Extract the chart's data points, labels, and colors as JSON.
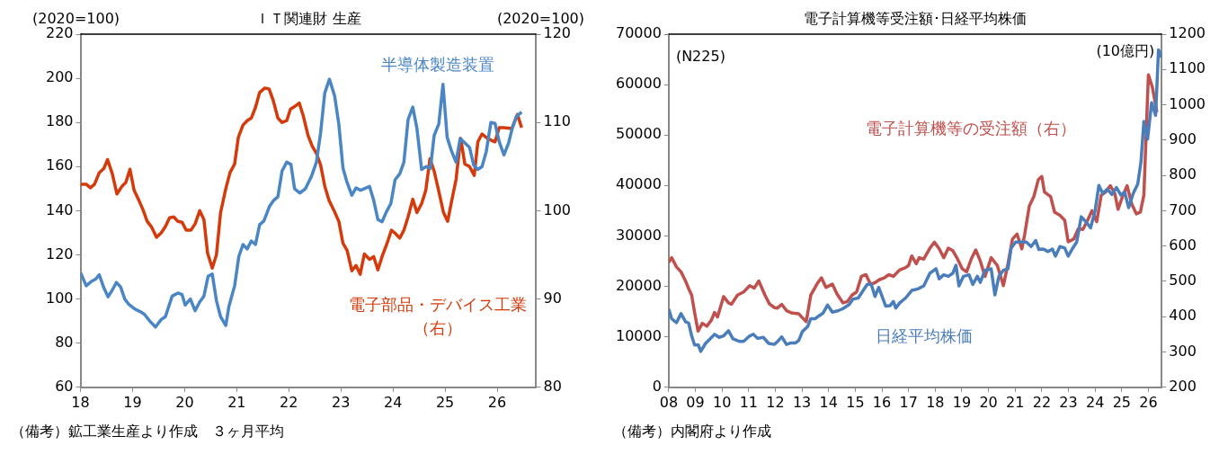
{
  "chart_data": [
    {
      "type": "line",
      "title": "ＩＴ関連財 生産",
      "ylabel": "(2020=100)",
      "y2label": "(2020=100)",
      "xlim": [
        2018,
        2026.75
      ],
      "xticks": [
        {
          "value": 2018,
          "label": "18"
        },
        {
          "value": 2019,
          "label": "19"
        },
        {
          "value": 2020,
          "label": "20"
        },
        {
          "value": 2021,
          "label": "21"
        },
        {
          "value": 2022,
          "label": "22"
        },
        {
          "value": 2023,
          "label": "23"
        },
        {
          "value": 2024,
          "label": "24"
        },
        {
          "value": 2025,
          "label": "25"
        },
        {
          "value": 2026,
          "label": "26"
        }
      ],
      "ylim": [
        60,
        220
      ],
      "yticks": [
        60,
        80,
        100,
        120,
        140,
        160,
        180,
        200,
        220
      ],
      "y2lim": [
        80,
        120
      ],
      "y2ticks": [
        80,
        90,
        100,
        110,
        120
      ],
      "grid": false,
      "annotations": [
        "（備考）鉱工業生産より作成　３ヶ月平均"
      ],
      "series": [
        {
          "name": "半導体製造装置",
          "color": "#4a86c5",
          "x": [
            2018.0,
            2018.11,
            2018.21,
            2018.29,
            2018.36,
            2018.45,
            2018.53,
            2018.61,
            2018.69,
            2018.77,
            2018.85,
            2018.93,
            2019.04,
            2019.17,
            2019.23,
            2019.33,
            2019.44,
            2019.55,
            2019.63,
            2019.76,
            2019.87,
            2019.95,
            2020.01,
            2020.11,
            2020.2,
            2020.29,
            2020.37,
            2020.45,
            2020.53,
            2020.61,
            2020.69,
            2020.79,
            2020.85,
            2020.96,
            2021.04,
            2021.12,
            2021.2,
            2021.28,
            2021.36,
            2021.44,
            2021.52,
            2021.63,
            2021.71,
            2021.79,
            2021.87,
            2021.96,
            2022.04,
            2022.11,
            2022.21,
            2022.32,
            2022.43,
            2022.53,
            2022.61,
            2022.69,
            2022.78,
            2022.88,
            2022.96,
            2023.04,
            2023.12,
            2023.21,
            2023.29,
            2023.38,
            2023.55,
            2023.63,
            2023.71,
            2023.79,
            2023.87,
            2023.96,
            2024.04,
            2024.13,
            2024.21,
            2024.29,
            2024.38,
            2024.46,
            2024.55,
            2024.64,
            2024.72,
            2024.79,
            2024.88,
            2024.96,
            2025.04,
            2025.12,
            2025.21,
            2025.29,
            2025.38,
            2025.47,
            2025.55,
            2025.63,
            2025.71,
            2025.79,
            2025.88,
            2025.96,
            2026.04,
            2026.13,
            2026.22,
            2026.29,
            2026.37,
            2026.47
          ],
          "values": [
            112,
            106,
            108,
            109,
            111,
            105,
            101,
            104,
            107.5,
            105.5,
            100,
            97.5,
            95.5,
            94,
            93,
            90,
            87.3,
            90.7,
            92,
            101.3,
            102.7,
            102,
            97.3,
            100,
            94.7,
            98.7,
            101.3,
            110.3,
            111.3,
            99.3,
            92,
            88,
            96.7,
            106,
            119.3,
            124.7,
            122.7,
            126.3,
            124.7,
            133.7,
            135.3,
            142,
            144.7,
            146.3,
            158,
            162,
            161,
            150,
            148,
            150,
            155.3,
            162,
            175.3,
            193.3,
            199.6,
            192,
            179.3,
            159.3,
            152.7,
            147,
            150.3,
            149.3,
            151,
            144.7,
            136,
            135,
            139.3,
            143.3,
            154,
            156.7,
            162,
            181.3,
            187,
            177.3,
            158.7,
            160,
            159.3,
            174,
            179.3,
            197.3,
            173.3,
            167.3,
            162,
            172.7,
            170.7,
            168.7,
            160.7,
            158.7,
            160,
            166.7,
            180,
            179.6,
            171.3,
            165.3,
            170.7,
            177.3,
            182.7,
            184.7
          ]
        },
        {
          "name": "電子部品・デバイス工業（右）",
          "color": "#d43a0a",
          "axis": "y2",
          "x": [
            2018.0,
            2018.11,
            2018.19,
            2018.27,
            2018.36,
            2018.45,
            2018.52,
            2018.61,
            2018.7,
            2018.8,
            2018.87,
            2018.95,
            2019.03,
            2019.12,
            2019.2,
            2019.28,
            2019.36,
            2019.46,
            2019.55,
            2019.63,
            2019.71,
            2019.79,
            2019.87,
            2019.95,
            2020.03,
            2020.12,
            2020.2,
            2020.29,
            2020.37,
            2020.44,
            2020.53,
            2020.61,
            2020.69,
            2020.79,
            2020.87,
            2020.96,
            2021.03,
            2021.12,
            2021.2,
            2021.28,
            2021.36,
            2021.44,
            2021.54,
            2021.62,
            2021.7,
            2021.79,
            2021.87,
            2021.96,
            2022.03,
            2022.11,
            2022.2,
            2022.28,
            2022.37,
            2022.45,
            2022.53,
            2022.61,
            2022.69,
            2022.77,
            2022.87,
            2022.96,
            2023.04,
            2023.12,
            2023.21,
            2023.29,
            2023.37,
            2023.45,
            2023.55,
            2023.63,
            2023.71,
            2023.79,
            2023.88,
            2023.97,
            2024.05,
            2024.13,
            2024.21,
            2024.29,
            2024.38,
            2024.46,
            2024.55,
            2024.63,
            2024.71,
            2024.79,
            2024.88,
            2024.97,
            2025.05,
            2025.13,
            2025.21,
            2025.3,
            2025.38,
            2025.47,
            2025.56,
            2025.63,
            2025.71,
            2025.79,
            2025.88,
            2025.96,
            2026.04,
            2026.13,
            2026.28,
            2026.39,
            2026.47
          ],
          "values": [
            103,
            103,
            102.6,
            103,
            104.3,
            104.8,
            105.8,
            104.2,
            101.9,
            102.8,
            103.2,
            104.7,
            102.3,
            101.2,
            100.1,
            98.8,
            98.2,
            97,
            97.5,
            98.2,
            99.2,
            99.3,
            98.8,
            98.7,
            97.8,
            97.8,
            98.5,
            100,
            99,
            95.2,
            93.5,
            95,
            99.8,
            102.5,
            104.3,
            105.3,
            108.3,
            109.7,
            110.2,
            110.5,
            111.7,
            113.4,
            113.9,
            113.8,
            112.5,
            110.5,
            110,
            110.2,
            111.5,
            111.8,
            112.2,
            110.7,
            108.5,
            107.3,
            106.5,
            105.2,
            102.8,
            101.2,
            100,
            98.8,
            96.3,
            95.5,
            93.2,
            93.8,
            92.8,
            95.1,
            94.5,
            94.8,
            93.3,
            94.8,
            96.2,
            97.8,
            97.4,
            96.9,
            97.8,
            99.3,
            101.3,
            99.8,
            100.8,
            102.3,
            105.9,
            104.5,
            102.2,
            99.8,
            98.8,
            101.2,
            103.5,
            108.2,
            105.3,
            105,
            104,
            107.8,
            108.7,
            108.3,
            108,
            107.8,
            109.4,
            109.4,
            109.3,
            110.9,
            109.4
          ]
        }
      ]
    },
    {
      "type": "line",
      "title": "電子計算機等受注額･日経平均株価",
      "ylabel": "(N225)",
      "y2label": "(10億円)",
      "xlim": [
        2008,
        2026.5
      ],
      "xticks": [
        {
          "value": 2008,
          "label": "08"
        },
        {
          "value": 2009,
          "label": "09"
        },
        {
          "value": 2010,
          "label": "10"
        },
        {
          "value": 2011,
          "label": "11"
        },
        {
          "value": 2012,
          "label": "12"
        },
        {
          "value": 2013,
          "label": "13"
        },
        {
          "value": 2014,
          "label": "14"
        },
        {
          "value": 2015,
          "label": "15"
        },
        {
          "value": 2016,
          "label": "16"
        },
        {
          "value": 2017,
          "label": "17"
        },
        {
          "value": 2018,
          "label": "18"
        },
        {
          "value": 2019,
          "label": "19"
        },
        {
          "value": 2020,
          "label": "20"
        },
        {
          "value": 2021,
          "label": "21"
        },
        {
          "value": 2022,
          "label": "22"
        },
        {
          "value": 2023,
          "label": "23"
        },
        {
          "value": 2024,
          "label": "24"
        },
        {
          "value": 2025,
          "label": "25"
        },
        {
          "value": 2026,
          "label": "26"
        }
      ],
      "ylim": [
        0,
        70000
      ],
      "yticks": [
        0,
        10000,
        20000,
        30000,
        40000,
        50000,
        60000,
        70000
      ],
      "y2lim": [
        200,
        1200
      ],
      "y2ticks": [
        200,
        300,
        400,
        500,
        600,
        700,
        800,
        900,
        1000,
        1100,
        1200
      ],
      "grid": false,
      "annotations": [
        "（備考）内閣府より作成"
      ],
      "series": [
        {
          "name": "日経平均株価",
          "color": "#4a7ebb",
          "x": [
            2008.0,
            2008.11,
            2008.29,
            2008.46,
            2008.63,
            2008.75,
            2008.86,
            2008.97,
            2009.11,
            2009.2,
            2009.38,
            2009.55,
            2009.72,
            2009.89,
            2010.06,
            2010.24,
            2010.41,
            2010.64,
            2010.81,
            2011.04,
            2011.18,
            2011.33,
            2011.55,
            2011.75,
            2011.96,
            2012.07,
            2012.24,
            2012.42,
            2012.59,
            2012.76,
            2012.88,
            2013.01,
            2013.22,
            2013.33,
            2013.5,
            2013.62,
            2013.79,
            2013.96,
            2014.14,
            2014.37,
            2014.54,
            2014.77,
            2014.92,
            2015.11,
            2015.26,
            2015.45,
            2015.6,
            2015.74,
            2015.88,
            2016.14,
            2016.31,
            2016.43,
            2016.52,
            2016.66,
            2016.89,
            2017.12,
            2017.35,
            2017.57,
            2017.8,
            2018.03,
            2018.15,
            2018.32,
            2018.49,
            2018.66,
            2018.78,
            2018.89,
            2019.06,
            2019.27,
            2019.41,
            2019.58,
            2019.69,
            2019.87,
            2020.1,
            2020.24,
            2020.39,
            2020.56,
            2020.73,
            2020.85,
            2021.02,
            2021.2,
            2021.42,
            2021.6,
            2021.77,
            2021.89,
            2022.06,
            2022.23,
            2022.4,
            2022.51,
            2022.68,
            2022.86,
            2022.99,
            2023.14,
            2023.31,
            2023.48,
            2023.66,
            2023.83,
            2024.0,
            2024.14,
            2024.29,
            2024.46,
            2024.63,
            2024.8,
            2024.97,
            2025.11,
            2025.26,
            2025.43,
            2025.6,
            2025.72,
            2025.83,
            2025.97,
            2026.12,
            2026.27,
            2026.38,
            2026.5
          ],
          "values": [
            15500,
            13600,
            12800,
            14600,
            13000,
            12700,
            10200,
            8400,
            8400,
            7100,
            8700,
            9600,
            10500,
            9900,
            10200,
            11200,
            9600,
            9100,
            9100,
            10200,
            10500,
            9700,
            9900,
            8700,
            8500,
            9000,
            10000,
            8500,
            8800,
            8800,
            9300,
            11000,
            12100,
            13600,
            13600,
            14100,
            14700,
            16300,
            14900,
            15200,
            15600,
            16400,
            17500,
            17700,
            18900,
            20400,
            20400,
            18000,
            19800,
            16100,
            16200,
            17000,
            15700,
            16700,
            17700,
            19200,
            19500,
            20100,
            22600,
            23500,
            21500,
            22300,
            22000,
            22600,
            24200,
            20100,
            22000,
            22300,
            20400,
            22000,
            20800,
            23200,
            23500,
            18300,
            22000,
            23200,
            23500,
            27600,
            28800,
            28800,
            28800,
            27900,
            29100,
            27300,
            27400,
            26900,
            27400,
            26000,
            27900,
            27600,
            26000,
            27400,
            28800,
            33800,
            32800,
            31600,
            35000,
            40000,
            38400,
            39300,
            38200,
            39600,
            38100,
            38700,
            35600,
            38400,
            40300,
            44600,
            52700,
            49200,
            56400,
            53900,
            66900,
            65400
          ]
        },
        {
          "name": "電子計算機等の受注額（右）",
          "color": "#c0504d",
          "axis": "y2",
          "x": [
            2008.0,
            2008.11,
            2008.29,
            2008.46,
            2008.63,
            2008.75,
            2008.86,
            2008.97,
            2009.1,
            2009.26,
            2009.43,
            2009.6,
            2009.72,
            2009.83,
            2010.06,
            2010.24,
            2010.35,
            2010.58,
            2010.81,
            2011.04,
            2011.21,
            2011.38,
            2011.61,
            2011.78,
            2011.96,
            2012.07,
            2012.24,
            2012.42,
            2012.64,
            2012.88,
            2012.99,
            2013.16,
            2013.33,
            2013.56,
            2013.73,
            2013.9,
            2014.14,
            2014.31,
            2014.54,
            2014.71,
            2014.88,
            2015.05,
            2015.23,
            2015.4,
            2015.57,
            2015.74,
            2015.91,
            2016.09,
            2016.26,
            2016.43,
            2016.66,
            2016.89,
            2017.0,
            2017.12,
            2017.29,
            2017.4,
            2017.57,
            2017.8,
            2017.97,
            2018.15,
            2018.32,
            2018.49,
            2018.66,
            2018.84,
            2019.01,
            2019.18,
            2019.35,
            2019.52,
            2019.69,
            2019.87,
            2020.1,
            2020.33,
            2020.56,
            2020.73,
            2020.9,
            2021.07,
            2021.25,
            2021.36,
            2021.53,
            2021.7,
            2021.87,
            2022.0,
            2022.1,
            2022.33,
            2022.48,
            2022.68,
            2022.86,
            2022.99,
            2023.2,
            2023.37,
            2023.54,
            2023.72,
            2023.88,
            2024.06,
            2024.23,
            2024.4,
            2024.57,
            2024.74,
            2024.86,
            2025.03,
            2025.2,
            2025.38,
            2025.55,
            2025.7,
            2025.83,
            2026.0,
            2026.15,
            2026.32
          ],
          "values": [
            554,
            567,
            541,
            527,
            501,
            479,
            461,
            412,
            359,
            381,
            373,
            390,
            412,
            399,
            457,
            439,
            435,
            461,
            470,
            488,
            481,
            501,
            461,
            436,
            426,
            424,
            435,
            417,
            410,
            408,
            399,
            386,
            461,
            492,
            510,
            483,
            492,
            465,
            439,
            443,
            461,
            470,
            514,
            519,
            492,
            496,
            505,
            510,
            519,
            514,
            532,
            539,
            545,
            572,
            550,
            567,
            563,
            594,
            611,
            592,
            567,
            594,
            587,
            563,
            536,
            527,
            563,
            589,
            558,
            514,
            567,
            545,
            488,
            550,
            620,
            634,
            592,
            634,
            713,
            740,
            788,
            797,
            753,
            740,
            696,
            687,
            673,
            612,
            620,
            649,
            647,
            673,
            700,
            669,
            744,
            753,
            771,
            749,
            704,
            740,
            771,
            718,
            691,
            696,
            744,
            1085,
            1050,
            979
          ]
        }
      ]
    }
  ]
}
